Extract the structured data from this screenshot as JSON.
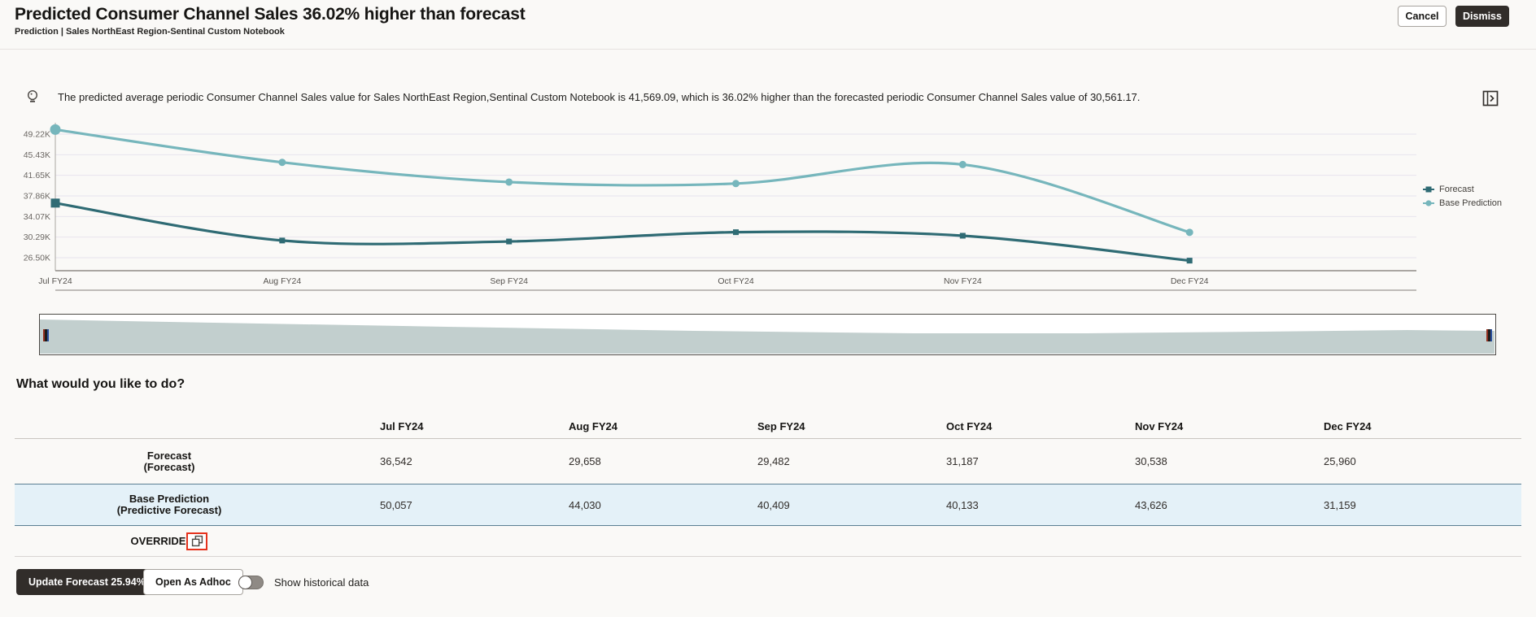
{
  "header": {
    "title": "Predicted Consumer Channel Sales 36.02% higher than forecast",
    "breadcrumb": "Prediction | Sales NorthEast Region-Sentinal Custom Notebook",
    "cancel_label": "Cancel",
    "dismiss_label": "Dismiss"
  },
  "insight": {
    "icon": "crystal-ball-icon",
    "message": "The predicted average periodic Consumer Channel Sales value for Sales NorthEast Region,Sentinal Custom Notebook is 41,569.09, which is 36.02% higher than the forecasted periodic Consumer Channel Sales value of 30,561.17."
  },
  "chart_data": {
    "type": "line",
    "categories": [
      "Jul FY24",
      "Aug FY24",
      "Sep FY24",
      "Oct FY24",
      "Nov FY24",
      "Dec FY24"
    ],
    "series": [
      {
        "name": "Forecast",
        "values": [
          36542,
          29658,
          29482,
          31187,
          30538,
          25960
        ],
        "color": "#2f6b74",
        "marker": "square"
      },
      {
        "name": "Base Prediction",
        "values": [
          50057,
          44030,
          40409,
          40133,
          43626,
          31159
        ],
        "color": "#76b6bc",
        "marker": "circle"
      }
    ],
    "y_axis": {
      "tick_labels": [
        "49.22K",
        "45.43K",
        "41.65K",
        "37.86K",
        "34.07K",
        "30.29K",
        "26.50K"
      ],
      "tick_values": [
        49220,
        45433,
        41647,
        37860,
        34073,
        30287,
        26500
      ],
      "max": 49220,
      "min": 26500
    },
    "grid": true,
    "legend_position": "right",
    "range_selector": {
      "fill": "#c2cfce",
      "profile": [
        [
          0,
          6
        ],
        [
          0.12,
          10
        ],
        [
          0.28,
          15
        ],
        [
          0.45,
          20
        ],
        [
          0.6,
          23
        ],
        [
          0.72,
          23
        ],
        [
          0.84,
          21
        ],
        [
          0.94,
          19
        ],
        [
          1,
          20
        ]
      ]
    }
  },
  "section": {
    "heading": "What would you like to do?"
  },
  "table": {
    "columns": [
      "Jul FY24",
      "Aug FY24",
      "Sep FY24",
      "Oct FY24",
      "Nov FY24",
      "Dec FY24"
    ],
    "rows": [
      {
        "label": "Forecast",
        "sublabel": "(Forecast)",
        "values": [
          "36,542",
          "29,658",
          "29,482",
          "31,187",
          "30,538",
          "25,960"
        ],
        "highlight": false
      },
      {
        "label": "Base Prediction",
        "sublabel": "(Predictive Forecast)",
        "values": [
          "50,057",
          "44,030",
          "40,409",
          "40,133",
          "43,626",
          "31,159"
        ],
        "highlight": true
      },
      {
        "label": "OVERRIDE",
        "icon": "copy-icon",
        "values": [
          "",
          "",
          "",
          "",
          "",
          ""
        ],
        "highlight": false
      }
    ]
  },
  "footer": {
    "update_button": "Update Forecast 25.94%",
    "adhoc_button": "Open As Adhoc",
    "toggle_label": "Show historical data",
    "toggle_state": "off"
  },
  "colors": {
    "accent_red": "#e5321d",
    "row_highlight": "#e4f1f8",
    "dark_button": "#312d2a",
    "forecast_line": "#2f6b74",
    "base_prediction_line": "#76b6bc"
  }
}
